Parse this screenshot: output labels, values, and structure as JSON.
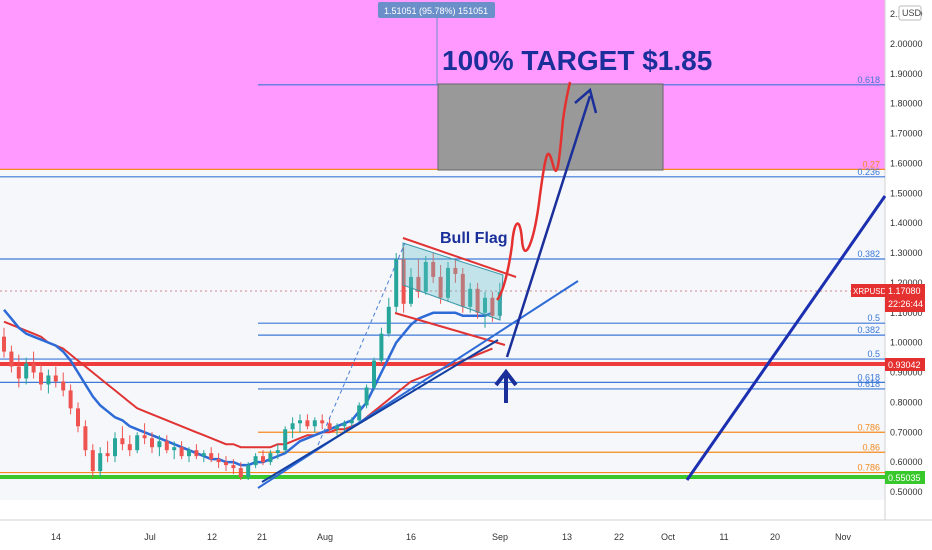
{
  "chart_data": {
    "type": "candlestick",
    "symbol": "XRPUSD",
    "currency": "USD",
    "ylim": [
      0.5,
      2.1
    ],
    "y_ticks": [
      "2.10000",
      "2.00000",
      "1.90000",
      "1.80000",
      "1.70000",
      "1.60000",
      "1.50000",
      "1.40000",
      "1.30000",
      "1.20000",
      "1.10000",
      "1.00000",
      "0.90000",
      "0.80000",
      "0.70000",
      "0.60000",
      "0.50000"
    ],
    "x_ticks": [
      "14",
      "Jul",
      "12",
      "21",
      "Aug",
      "16",
      "Sep",
      "13",
      "22",
      "Oct",
      "11",
      "20",
      "Nov"
    ],
    "tooltip_text": "1.51051 (95.78%) 151051",
    "annotation_title": "100% TARGET $1.85",
    "pattern_label": "Bull Flag",
    "price_tag": {
      "symbol": "XRPUSD",
      "price": "1.17080",
      "countdown": "22:26:44"
    },
    "support_tag": {
      "price": "0.93042"
    },
    "green_tag": {
      "price": "0.55035"
    },
    "fib_upper": [
      {
        "label": "0.618",
        "price": 1.863
      },
      {
        "label": "0.27",
        "price": 1.58
      },
      {
        "label": "0.236",
        "price": 1.555
      },
      {
        "label": "0.382",
        "price": 1.28
      },
      {
        "label": "0.5",
        "price": 1.065
      },
      {
        "label": "0.382",
        "price": 1.025
      },
      {
        "label": "0.5",
        "price": 0.945
      },
      {
        "label": "0.618",
        "price": 0.867
      },
      {
        "label": "0.618",
        "price": 0.845
      },
      {
        "label": "0.786",
        "price": 0.7
      },
      {
        "label": "0.86",
        "price": 0.633
      },
      {
        "label": "0.786",
        "price": 0.565
      }
    ],
    "candles": [
      {
        "o": 1.02,
        "h": 1.05,
        "l": 0.95,
        "c": 0.97
      },
      {
        "o": 0.97,
        "h": 0.99,
        "l": 0.9,
        "c": 0.92
      },
      {
        "o": 0.92,
        "h": 0.96,
        "l": 0.85,
        "c": 0.88
      },
      {
        "o": 0.88,
        "h": 0.95,
        "l": 0.86,
        "c": 0.93
      },
      {
        "o": 0.93,
        "h": 0.97,
        "l": 0.88,
        "c": 0.9
      },
      {
        "o": 0.9,
        "h": 0.93,
        "l": 0.84,
        "c": 0.86
      },
      {
        "o": 0.86,
        "h": 0.91,
        "l": 0.83,
        "c": 0.89
      },
      {
        "o": 0.89,
        "h": 0.92,
        "l": 0.85,
        "c": 0.87
      },
      {
        "o": 0.87,
        "h": 0.9,
        "l": 0.82,
        "c": 0.84
      },
      {
        "o": 0.84,
        "h": 0.86,
        "l": 0.76,
        "c": 0.78
      },
      {
        "o": 0.78,
        "h": 0.8,
        "l": 0.7,
        "c": 0.72
      },
      {
        "o": 0.72,
        "h": 0.74,
        "l": 0.62,
        "c": 0.64
      },
      {
        "o": 0.64,
        "h": 0.66,
        "l": 0.55,
        "c": 0.57
      },
      {
        "o": 0.57,
        "h": 0.65,
        "l": 0.55,
        "c": 0.63
      },
      {
        "o": 0.63,
        "h": 0.67,
        "l": 0.6,
        "c": 0.62
      },
      {
        "o": 0.62,
        "h": 0.7,
        "l": 0.6,
        "c": 0.68
      },
      {
        "o": 0.68,
        "h": 0.72,
        "l": 0.64,
        "c": 0.66
      },
      {
        "o": 0.66,
        "h": 0.69,
        "l": 0.62,
        "c": 0.64
      },
      {
        "o": 0.64,
        "h": 0.7,
        "l": 0.63,
        "c": 0.69
      },
      {
        "o": 0.69,
        "h": 0.73,
        "l": 0.66,
        "c": 0.68
      },
      {
        "o": 0.68,
        "h": 0.7,
        "l": 0.63,
        "c": 0.65
      },
      {
        "o": 0.65,
        "h": 0.69,
        "l": 0.62,
        "c": 0.67
      },
      {
        "o": 0.67,
        "h": 0.69,
        "l": 0.63,
        "c": 0.64
      },
      {
        "o": 0.64,
        "h": 0.67,
        "l": 0.61,
        "c": 0.65
      },
      {
        "o": 0.65,
        "h": 0.67,
        "l": 0.61,
        "c": 0.62
      },
      {
        "o": 0.62,
        "h": 0.65,
        "l": 0.6,
        "c": 0.64
      },
      {
        "o": 0.64,
        "h": 0.66,
        "l": 0.61,
        "c": 0.62
      },
      {
        "o": 0.62,
        "h": 0.64,
        "l": 0.6,
        "c": 0.63
      },
      {
        "o": 0.63,
        "h": 0.65,
        "l": 0.6,
        "c": 0.61
      },
      {
        "o": 0.61,
        "h": 0.63,
        "l": 0.58,
        "c": 0.6
      },
      {
        "o": 0.6,
        "h": 0.62,
        "l": 0.57,
        "c": 0.59
      },
      {
        "o": 0.59,
        "h": 0.61,
        "l": 0.56,
        "c": 0.58
      },
      {
        "o": 0.58,
        "h": 0.6,
        "l": 0.54,
        "c": 0.55
      },
      {
        "o": 0.55,
        "h": 0.6,
        "l": 0.54,
        "c": 0.59
      },
      {
        "o": 0.59,
        "h": 0.63,
        "l": 0.58,
        "c": 0.62
      },
      {
        "o": 0.62,
        "h": 0.64,
        "l": 0.59,
        "c": 0.6
      },
      {
        "o": 0.6,
        "h": 0.64,
        "l": 0.59,
        "c": 0.63
      },
      {
        "o": 0.63,
        "h": 0.66,
        "l": 0.61,
        "c": 0.64
      },
      {
        "o": 0.64,
        "h": 0.72,
        "l": 0.63,
        "c": 0.71
      },
      {
        "o": 0.71,
        "h": 0.75,
        "l": 0.68,
        "c": 0.73
      },
      {
        "o": 0.73,
        "h": 0.76,
        "l": 0.7,
        "c": 0.74
      },
      {
        "o": 0.74,
        "h": 0.76,
        "l": 0.71,
        "c": 0.72
      },
      {
        "o": 0.72,
        "h": 0.75,
        "l": 0.7,
        "c": 0.74
      },
      {
        "o": 0.74,
        "h": 0.76,
        "l": 0.71,
        "c": 0.73
      },
      {
        "o": 0.73,
        "h": 0.75,
        "l": 0.7,
        "c": 0.71
      },
      {
        "o": 0.71,
        "h": 0.73,
        "l": 0.69,
        "c": 0.72
      },
      {
        "o": 0.72,
        "h": 0.74,
        "l": 0.7,
        "c": 0.73
      },
      {
        "o": 0.73,
        "h": 0.75,
        "l": 0.71,
        "c": 0.74
      },
      {
        "o": 0.74,
        "h": 0.8,
        "l": 0.73,
        "c": 0.79
      },
      {
        "o": 0.79,
        "h": 0.86,
        "l": 0.78,
        "c": 0.85
      },
      {
        "o": 0.85,
        "h": 0.95,
        "l": 0.84,
        "c": 0.94
      },
      {
        "o": 0.94,
        "h": 1.05,
        "l": 0.93,
        "c": 1.03
      },
      {
        "o": 1.03,
        "h": 1.15,
        "l": 1.02,
        "c": 1.12
      },
      {
        "o": 1.12,
        "h": 1.3,
        "l": 1.1,
        "c": 1.28
      },
      {
        "o": 1.28,
        "h": 1.32,
        "l": 1.1,
        "c": 1.13
      },
      {
        "o": 1.13,
        "h": 1.25,
        "l": 1.12,
        "c": 1.22
      },
      {
        "o": 1.22,
        "h": 1.28,
        "l": 1.15,
        "c": 1.17
      },
      {
        "o": 1.17,
        "h": 1.29,
        "l": 1.16,
        "c": 1.27
      },
      {
        "o": 1.27,
        "h": 1.3,
        "l": 1.2,
        "c": 1.22
      },
      {
        "o": 1.22,
        "h": 1.26,
        "l": 1.13,
        "c": 1.15
      },
      {
        "o": 1.15,
        "h": 1.27,
        "l": 1.14,
        "c": 1.25
      },
      {
        "o": 1.25,
        "h": 1.28,
        "l": 1.2,
        "c": 1.23
      },
      {
        "o": 1.23,
        "h": 1.25,
        "l": 1.1,
        "c": 1.12
      },
      {
        "o": 1.12,
        "h": 1.2,
        "l": 1.1,
        "c": 1.18
      },
      {
        "o": 1.18,
        "h": 1.2,
        "l": 1.08,
        "c": 1.1
      },
      {
        "o": 1.1,
        "h": 1.17,
        "l": 1.05,
        "c": 1.15
      },
      {
        "o": 1.15,
        "h": 1.17,
        "l": 1.07,
        "c": 1.09
      },
      {
        "o": 1.09,
        "h": 1.2,
        "l": 1.08,
        "c": 1.17
      }
    ],
    "ema_blue": [
      1.11,
      1.08,
      1.05,
      1.03,
      1.02,
      1.01,
      1.0,
      0.99,
      0.97,
      0.94,
      0.9,
      0.86,
      0.82,
      0.79,
      0.77,
      0.75,
      0.74,
      0.72,
      0.71,
      0.7,
      0.69,
      0.68,
      0.67,
      0.66,
      0.65,
      0.64,
      0.63,
      0.62,
      0.61,
      0.61,
      0.6,
      0.6,
      0.59,
      0.59,
      0.6,
      0.6,
      0.61,
      0.62,
      0.63,
      0.65,
      0.67,
      0.68,
      0.69,
      0.7,
      0.71,
      0.72,
      0.73,
      0.74,
      0.77,
      0.8,
      0.85,
      0.9,
      0.95,
      1.0,
      1.03,
      1.06,
      1.08,
      1.09,
      1.1,
      1.1,
      1.1,
      1.1,
      1.09,
      1.09,
      1.09,
      1.09,
      1.1
    ],
    "ema_red": [
      1.07,
      1.06,
      1.05,
      1.04,
      1.03,
      1.02,
      1.0,
      0.99,
      0.98,
      0.96,
      0.94,
      0.92,
      0.9,
      0.88,
      0.86,
      0.84,
      0.82,
      0.8,
      0.78,
      0.77,
      0.76,
      0.75,
      0.74,
      0.73,
      0.72,
      0.71,
      0.7,
      0.69,
      0.68,
      0.67,
      0.66,
      0.66,
      0.65,
      0.65,
      0.65,
      0.65,
      0.65,
      0.66,
      0.66,
      0.67,
      0.68,
      0.69,
      0.69,
      0.7,
      0.7,
      0.71,
      0.71,
      0.72,
      0.73,
      0.75,
      0.77,
      0.79,
      0.81,
      0.83,
      0.85,
      0.87,
      0.88,
      0.89,
      0.9,
      0.91,
      0.92,
      0.93,
      0.94,
      0.95,
      0.96,
      0.97,
      0.98
    ],
    "projection": [
      [
        1.17,
        0
      ],
      [
        1.35,
        2
      ],
      [
        1.28,
        4
      ],
      [
        1.45,
        7
      ],
      [
        1.6,
        9
      ],
      [
        1.68,
        11
      ],
      [
        1.62,
        12
      ],
      [
        1.8,
        14
      ],
      [
        1.88,
        15
      ]
    ]
  }
}
